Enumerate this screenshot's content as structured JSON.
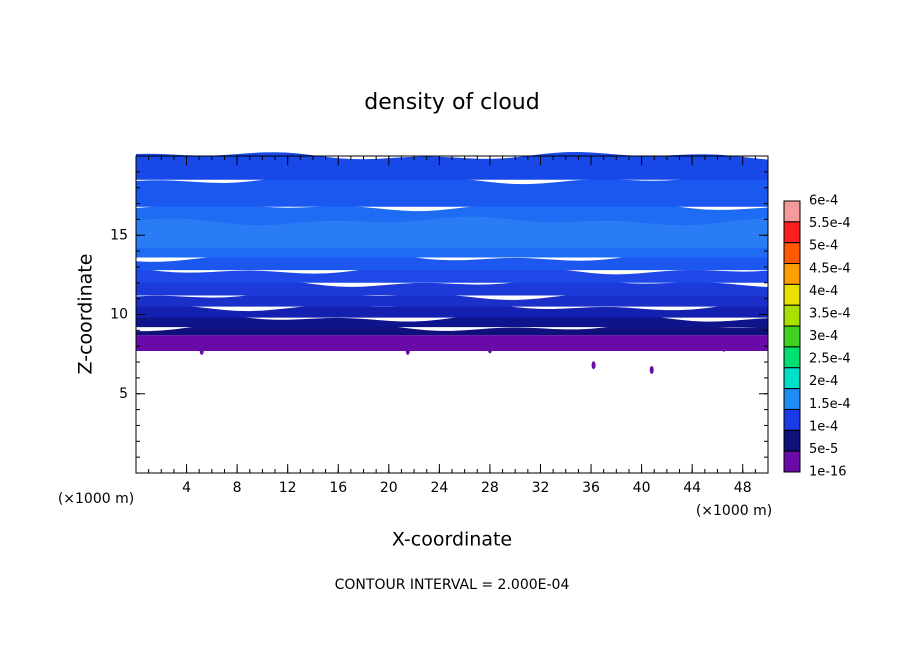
{
  "chart_data": {
    "type": "contour",
    "title": "density of cloud",
    "x_label": "X-coordinate",
    "y_label": "Z-coordinate",
    "x_unit_left": "(×1000 m)",
    "x_unit_right": "(×1000 m)",
    "annotation": "CONTOUR INTERVAL = 2.000E-04",
    "xlim": [
      0,
      50
    ],
    "xticks": [
      4,
      8,
      12,
      16,
      20,
      24,
      28,
      32,
      36,
      40,
      44,
      48
    ],
    "ylim": [
      0,
      20
    ],
    "yticks": [
      5,
      10,
      15
    ],
    "colorbar": {
      "labels": [
        "6e-4",
        "5.5e-4",
        "5e-4",
        "4.5e-4",
        "4e-4",
        "3.5e-4",
        "3e-4",
        "2.5e-4",
        "2e-4",
        "1.5e-4",
        "1e-4",
        "5e-5",
        "1e-16"
      ],
      "colors": [
        "#f49a9a",
        "#ff2020",
        "#ff5a00",
        "#ff9e00",
        "#e8e000",
        "#a8e000",
        "#40d020",
        "#00e070",
        "#00e0c8",
        "#1e8cf4",
        "#1a3ce8",
        "#10107c",
        "#6a0aa8"
      ]
    }
  }
}
